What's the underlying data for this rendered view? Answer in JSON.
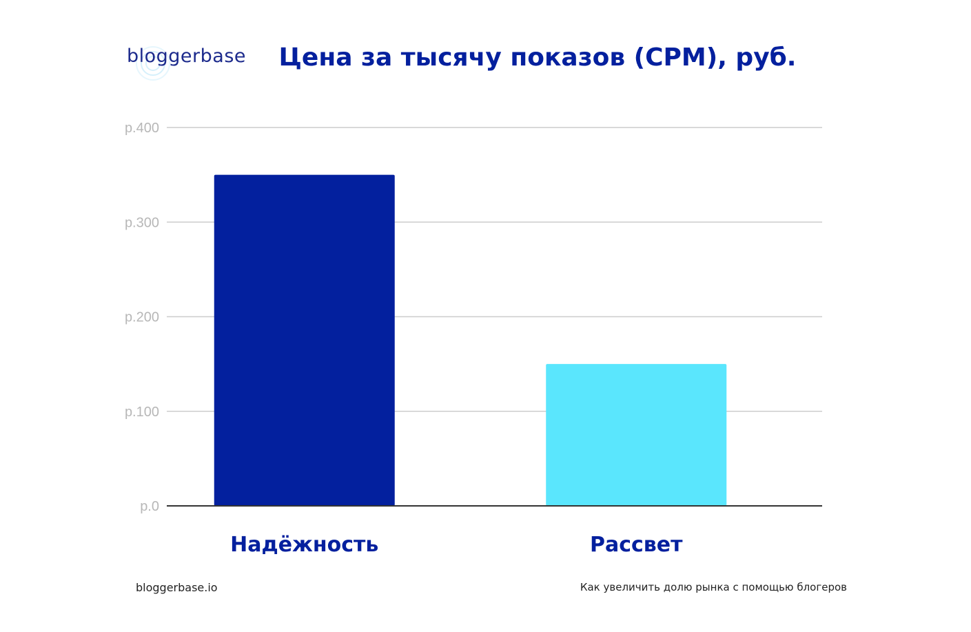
{
  "logo": {
    "text": "bloggerbase",
    "icon": "signal-rings-icon",
    "color": "#1c2a8c",
    "ring_color": "#bfe6f7"
  },
  "footer": {
    "left": "bloggerbase.io",
    "right": "Как увеличить долю рынка с помощью блогеров"
  },
  "colors": {
    "title": "#04209e",
    "gridline": "#cccccc",
    "baseline": "#333333",
    "tick_label": "#b7b7b7",
    "category_label": "#04209e"
  },
  "chart_data": {
    "type": "bar",
    "title": "Цена за тысячу показов (CPM), руб.",
    "xlabel": "",
    "ylabel": "",
    "categories": [
      "Надёжность",
      "Рассвет"
    ],
    "values": [
      350,
      150
    ],
    "bar_colors": [
      "#03209e",
      "#5ae6fd"
    ],
    "ylim": [
      0,
      400
    ],
    "yticks": [
      0,
      100,
      200,
      300,
      400
    ],
    "ytick_labels": [
      "р.0",
      "р.100",
      "р.200",
      "р.300",
      "р.400"
    ],
    "grid": true,
    "legend": "none"
  }
}
